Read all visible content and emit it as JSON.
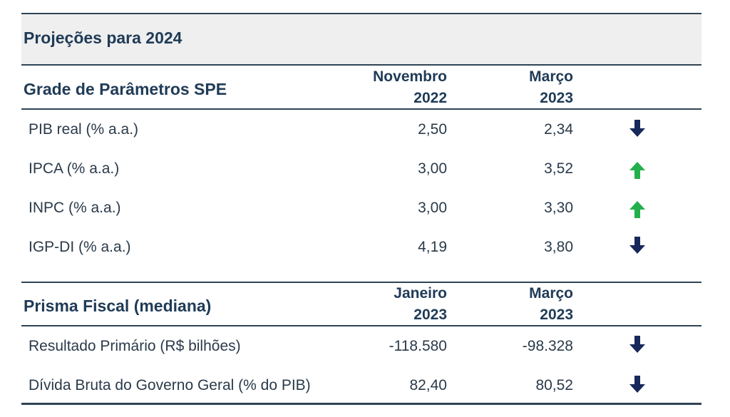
{
  "title": "Projeções para 2024",
  "spe": {
    "heading": "Grade de Parâmetros SPE",
    "col1": [
      "Novembro",
      "2022"
    ],
    "col2": [
      "Março",
      "2023"
    ],
    "rows": [
      {
        "label": "PIB real (% a.a.)",
        "v1": "2,50",
        "v2": "2,34",
        "trend": "down"
      },
      {
        "label": "IPCA (% a.a.)",
        "v1": "3,00",
        "v2": "3,52",
        "trend": "up"
      },
      {
        "label": "INPC (% a.a.)",
        "v1": "3,00",
        "v2": "3,30",
        "trend": "up"
      },
      {
        "label": "IGP-DI (% a.a.)",
        "v1": "4,19",
        "v2": "3,80",
        "trend": "down"
      }
    ]
  },
  "prisma": {
    "heading": "Prisma Fiscal (mediana)",
    "col1": [
      "Janeiro",
      "2023"
    ],
    "col2": [
      "Março",
      "2023"
    ],
    "rows": [
      {
        "label": "Resultado Primário (R$ bilhões)",
        "v1": "-118.580",
        "v2": "-98.328",
        "trend": "down"
      },
      {
        "label": "Dívida Bruta do Governo Geral (% do PIB)",
        "v1": "82,40",
        "v2": "80,52",
        "trend": "down"
      }
    ]
  },
  "colors": {
    "header_bg": "#efefef",
    "text": "#1f3b57",
    "rule": "#2f4456",
    "arrow_down": "#17285a",
    "arrow_up": "#22b04a"
  },
  "icons": {
    "down": "arrow-down-icon",
    "up": "arrow-up-icon"
  }
}
